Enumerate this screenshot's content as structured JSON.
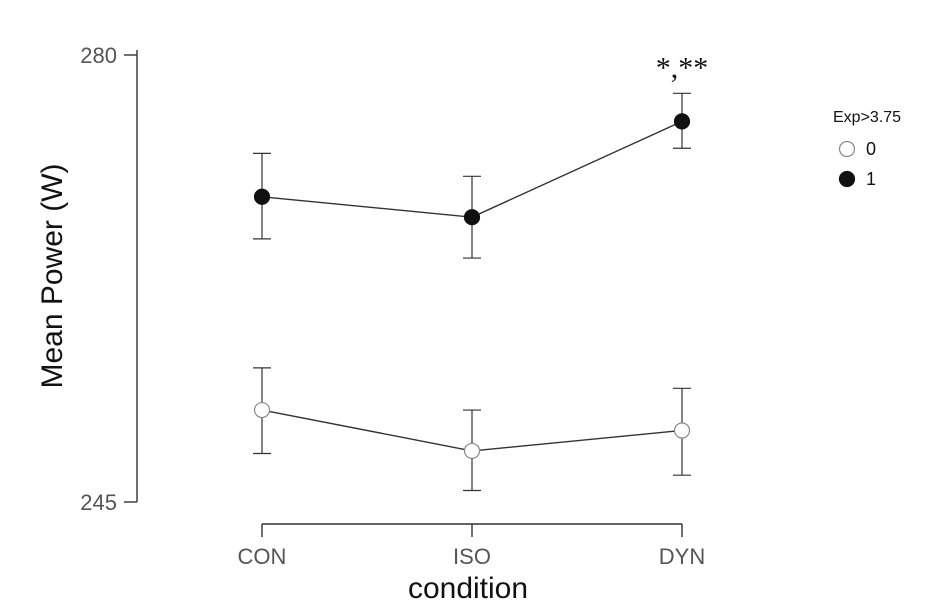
{
  "chart_data": {
    "type": "line",
    "xlabel": "condition",
    "ylabel": "Mean Power (W)",
    "categories": [
      "CON",
      "ISO",
      "DYN"
    ],
    "ylim": [
      245,
      280
    ],
    "yticks": [
      245,
      280
    ],
    "legend": {
      "title": "Exp>3.75",
      "placement": "right"
    },
    "series": [
      {
        "name": "0",
        "marker": "open-circle",
        "color": "#ffffff",
        "stroke": "#888888",
        "values": [
          252.2,
          249.0,
          250.6
        ],
        "err_low": [
          248.8,
          245.9,
          247.1
        ],
        "err_high": [
          255.5,
          252.2,
          253.9
        ]
      },
      {
        "name": "1",
        "marker": "filled-circle",
        "color": "#111111",
        "stroke": "#111111",
        "values": [
          268.9,
          267.3,
          274.8
        ],
        "err_low": [
          265.6,
          264.1,
          272.7
        ],
        "err_high": [
          272.3,
          270.5,
          277.0
        ]
      }
    ],
    "annotations": [
      {
        "text": "*,**",
        "category": "DYN",
        "series": "1"
      }
    ]
  }
}
